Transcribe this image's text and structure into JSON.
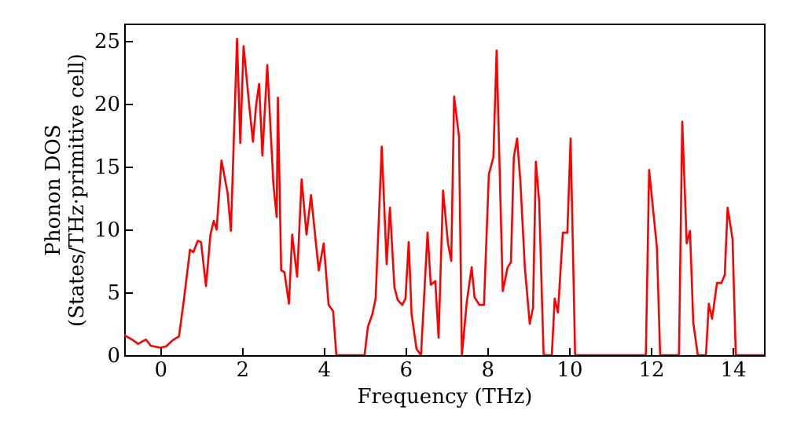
{
  "chart_data": {
    "type": "line",
    "xlabel": "Frequency (THz)",
    "ylabel": "Phonon DOS\n(States/THz·primitive cell)",
    "x": [
      -0.88,
      -0.69,
      -0.54,
      -0.35,
      -0.23,
      0,
      0.15,
      0.31,
      0.46,
      0.58,
      0.73,
      0.81,
      0.92,
      1.0,
      1.12,
      1.23,
      1.31,
      1.38,
      1.5,
      1.65,
      1.73,
      1.88,
      1.96,
      2.04,
      2.19,
      2.27,
      2.35,
      2.42,
      2.5,
      2.62,
      2.77,
      2.85,
      2.88,
      2.96,
      3.04,
      3.15,
      3.23,
      3.35,
      3.46,
      3.58,
      3.69,
      3.81,
      3.88,
      4.0,
      4.12,
      4.23,
      4.31,
      5.0,
      5.08,
      5.19,
      5.27,
      5.42,
      5.54,
      5.62,
      5.73,
      5.81,
      5.92,
      6.0,
      6.08,
      6.15,
      6.27,
      6.38,
      6.54,
      6.62,
      6.73,
      6.81,
      6.92,
      7.04,
      7.12,
      7.19,
      7.31,
      7.38,
      7.5,
      7.62,
      7.69,
      7.81,
      7.92,
      8.04,
      8.15,
      8.23,
      8.38,
      8.5,
      8.58,
      8.65,
      8.73,
      8.81,
      8.92,
      9.04,
      9.12,
      9.19,
      9.27,
      9.35,
      9.38,
      9.58,
      9.65,
      9.73,
      9.85,
      9.96,
      10.04,
      10.15,
      11.88,
      11.96,
      12.15,
      12.23,
      12.69,
      12.77,
      12.88,
      12.96,
      13.04,
      13.15,
      13.35,
      13.42,
      13.5,
      13.62,
      13.73,
      13.81,
      13.88,
      14.0,
      14.08,
      14.77
    ],
    "series": [
      {
        "color": "#ff0000",
        "values": [
          1.6,
          1.25,
          0.9,
          1.25,
          0.75,
          0.6,
          0.7,
          1.2,
          1.5,
          4.4,
          8.4,
          8.2,
          9.1,
          9.0,
          5.5,
          9.6,
          10.7,
          10,
          15.5,
          12.9,
          9.9,
          25.2,
          16.9,
          24.6,
          19.5,
          17,
          20,
          21.6,
          15.9,
          23.1,
          13.6,
          11,
          20.5,
          6.75,
          6.6,
          4.1,
          9.6,
          6.25,
          14,
          9.6,
          12.75,
          8.9,
          6.75,
          8.9,
          4.0,
          3.5,
          0,
          0,
          2.25,
          3.25,
          4.5,
          16.6,
          7.25,
          11.75,
          5.4,
          4.4,
          4,
          4.5,
          9,
          3.25,
          0.5,
          0,
          9.75,
          5.6,
          5.9,
          1.4,
          13.1,
          8.9,
          7.5,
          20.6,
          17.4,
          0,
          4.25,
          7,
          4.6,
          4,
          4,
          14.4,
          15.75,
          24.25,
          5.1,
          7,
          7.4,
          15.75,
          17.25,
          13.9,
          7,
          2.5,
          3.75,
          15.4,
          12.25,
          3.25,
          0,
          0,
          4.5,
          3.4,
          9.75,
          9.75,
          17.25,
          0,
          0,
          14.75,
          8.6,
          0,
          0,
          18.6,
          8.9,
          9.9,
          2.6,
          0,
          0,
          4.1,
          2.9,
          5.75,
          5.75,
          6.4,
          11.75,
          9.25,
          0,
          0
        ]
      }
    ],
    "xlim": [
      -0.88,
      14.77
    ],
    "xticks": [
      0,
      2,
      4,
      6,
      8,
      10,
      12,
      14
    ],
    "ylim": [
      0,
      26.4
    ],
    "yticks": [
      0,
      5,
      10,
      15,
      20,
      25
    ],
    "marker": "none",
    "line_style": "solid"
  }
}
